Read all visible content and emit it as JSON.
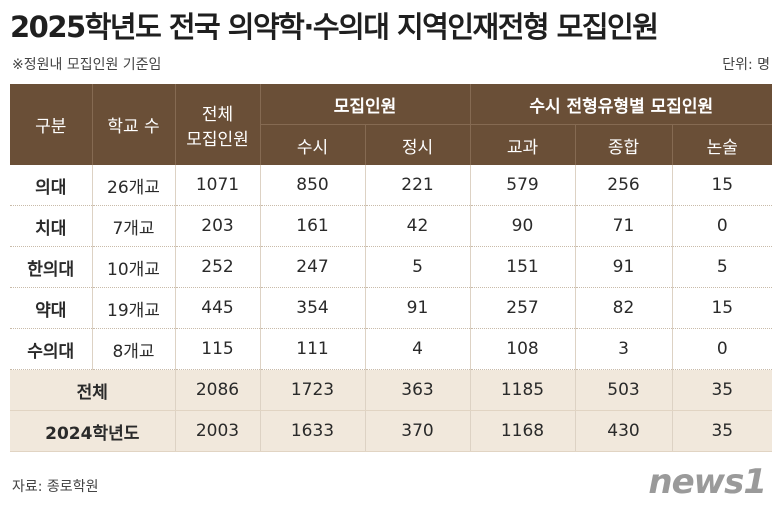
{
  "title": "2025학년도 전국 의약학·수의대 지역인재전형 모집인원",
  "note": "※정원내 모집인원 기준임",
  "unit": "단위: 명",
  "table": {
    "header": {
      "group": "구분",
      "schools": "학교 수",
      "total": [
        "전체",
        "모집인원"
      ],
      "recruit": "모집인원",
      "susi_types": "수시 전형유형별 모집인원",
      "sub": [
        "수시",
        "정시",
        "교과",
        "종합",
        "논술"
      ]
    },
    "rows": [
      [
        "의대",
        "26개교",
        1071,
        850,
        221,
        579,
        256,
        15
      ],
      [
        "치대",
        "7개교",
        203,
        161,
        42,
        90,
        71,
        0
      ],
      [
        "한의대",
        "10개교",
        252,
        247,
        5,
        151,
        91,
        5
      ],
      [
        "약대",
        "19개교",
        445,
        354,
        91,
        257,
        82,
        15
      ],
      [
        "수의대",
        "8개교",
        115,
        111,
        4,
        108,
        3,
        0
      ]
    ],
    "totals": [
      [
        "전체",
        2086,
        1723,
        363,
        1185,
        503,
        35
      ],
      [
        "2024학년도",
        2003,
        1633,
        370,
        1168,
        430,
        35
      ]
    ]
  },
  "source": "자료: 종로학원",
  "logo": "news1"
}
